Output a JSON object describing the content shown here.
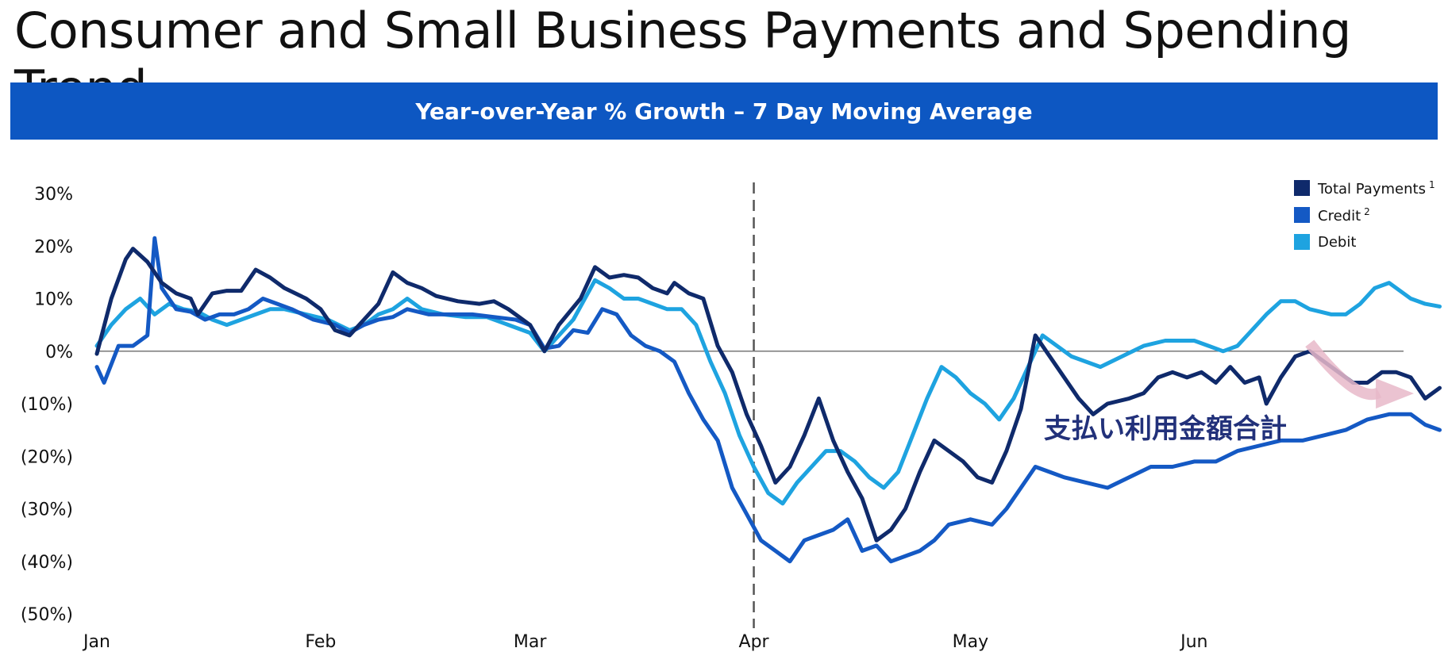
{
  "page": {
    "title": "Consumer and Small Business Payments and Spending Trend",
    "banner": "Year-over-Year % Growth – 7 Day Moving Average",
    "annotation": "支払い利用金額合計"
  },
  "colors": {
    "banner": "#0d57c2",
    "total": "#0f2a6b",
    "credit": "#1459c4",
    "debit": "#1ea3e0",
    "arrow": "#e8b9c9"
  },
  "chart_data": {
    "type": "line",
    "title": "Year-over-Year % Growth – 7 Day Moving Average",
    "xlabel": "",
    "ylabel": "",
    "x_ticks": [
      "Jan",
      "Feb",
      "Mar",
      "Apr",
      "May",
      "Jun"
    ],
    "y_ticks": [
      "30%",
      "20%",
      "10%",
      "0%",
      "(10%)",
      "(20%)",
      "(30%)",
      "(40%)",
      "(50%)"
    ],
    "ylim": [
      -50,
      30
    ],
    "x_start": "2020-01-01",
    "x_end": "2020-06-30",
    "reference_line_date": "2020-04-01",
    "zero_line": true,
    "legend_position": "top-right",
    "legend": [
      {
        "name": "Total Payments",
        "sup": "1"
      },
      {
        "name": "Credit",
        "sup": "2"
      },
      {
        "name": "Debit",
        "sup": ""
      }
    ],
    "series": [
      {
        "name": "Total Payments",
        "points": [
          [
            "2020-01-01",
            -0.5
          ],
          [
            "2020-01-03",
            10
          ],
          [
            "2020-01-05",
            17.5
          ],
          [
            "2020-01-06",
            19.5
          ],
          [
            "2020-01-08",
            17
          ],
          [
            "2020-01-10",
            13
          ],
          [
            "2020-01-12",
            11
          ],
          [
            "2020-01-14",
            10
          ],
          [
            "2020-01-15",
            7
          ],
          [
            "2020-01-17",
            11
          ],
          [
            "2020-01-19",
            11.5
          ],
          [
            "2020-01-21",
            11.5
          ],
          [
            "2020-01-23",
            15.5
          ],
          [
            "2020-01-25",
            14
          ],
          [
            "2020-01-27",
            12
          ],
          [
            "2020-01-30",
            10
          ],
          [
            "2020-02-01",
            8
          ],
          [
            "2020-02-03",
            4
          ],
          [
            "2020-02-05",
            3
          ],
          [
            "2020-02-07",
            6
          ],
          [
            "2020-02-09",
            9
          ],
          [
            "2020-02-11",
            15
          ],
          [
            "2020-02-13",
            13
          ],
          [
            "2020-02-15",
            12
          ],
          [
            "2020-02-17",
            10.5
          ],
          [
            "2020-02-20",
            9.5
          ],
          [
            "2020-02-23",
            9
          ],
          [
            "2020-02-25",
            9.5
          ],
          [
            "2020-02-27",
            8
          ],
          [
            "2020-03-01",
            5
          ],
          [
            "2020-03-03",
            0
          ],
          [
            "2020-03-05",
            5
          ],
          [
            "2020-03-08",
            10
          ],
          [
            "2020-03-10",
            16
          ],
          [
            "2020-03-12",
            14
          ],
          [
            "2020-03-14",
            14.5
          ],
          [
            "2020-03-16",
            14
          ],
          [
            "2020-03-18",
            12
          ],
          [
            "2020-03-20",
            11
          ],
          [
            "2020-03-21",
            13
          ],
          [
            "2020-03-23",
            11
          ],
          [
            "2020-03-25",
            10
          ],
          [
            "2020-03-27",
            1
          ],
          [
            "2020-03-29",
            -4
          ],
          [
            "2020-03-31",
            -12
          ],
          [
            "2020-04-02",
            -18
          ],
          [
            "2020-04-04",
            -25
          ],
          [
            "2020-04-06",
            -22
          ],
          [
            "2020-04-08",
            -16
          ],
          [
            "2020-04-10",
            -9
          ],
          [
            "2020-04-12",
            -17
          ],
          [
            "2020-04-14",
            -23
          ],
          [
            "2020-04-16",
            -28
          ],
          [
            "2020-04-18",
            -36
          ],
          [
            "2020-04-20",
            -34
          ],
          [
            "2020-04-22",
            -30
          ],
          [
            "2020-04-24",
            -23
          ],
          [
            "2020-04-26",
            -17
          ],
          [
            "2020-04-28",
            -19
          ],
          [
            "2020-04-30",
            -21
          ],
          [
            "2020-05-02",
            -24
          ],
          [
            "2020-05-04",
            -25
          ],
          [
            "2020-05-06",
            -19
          ],
          [
            "2020-05-08",
            -11
          ],
          [
            "2020-05-10",
            3
          ],
          [
            "2020-05-12",
            -1
          ],
          [
            "2020-05-14",
            -5
          ],
          [
            "2020-05-16",
            -9
          ],
          [
            "2020-05-18",
            -12
          ],
          [
            "2020-05-20",
            -10
          ],
          [
            "2020-05-23",
            -9
          ],
          [
            "2020-05-25",
            -8
          ],
          [
            "2020-05-27",
            -5
          ],
          [
            "2020-05-29",
            -4
          ],
          [
            "2020-05-31",
            -5
          ],
          [
            "2020-06-02",
            -4
          ],
          [
            "2020-06-04",
            -6
          ],
          [
            "2020-06-06",
            -3
          ],
          [
            "2020-06-08",
            -6
          ],
          [
            "2020-06-10",
            -5
          ],
          [
            "2020-06-11",
            -10
          ],
          [
            "2020-06-13",
            -5
          ],
          [
            "2020-06-15",
            -1
          ],
          [
            "2020-06-17",
            0
          ],
          [
            "2020-06-19",
            -2
          ],
          [
            "2020-06-21",
            -4
          ],
          [
            "2020-06-23",
            -6
          ],
          [
            "2020-06-25",
            -6
          ],
          [
            "2020-06-27",
            -4
          ],
          [
            "2020-06-29",
            -4
          ],
          [
            "2020-07-01",
            -5
          ],
          [
            "2020-07-03",
            -9
          ],
          [
            "2020-07-05",
            -7
          ]
        ]
      },
      {
        "name": "Credit",
        "points": [
          [
            "2020-01-01",
            -3
          ],
          [
            "2020-01-02",
            -6
          ],
          [
            "2020-01-04",
            1
          ],
          [
            "2020-01-06",
            1
          ],
          [
            "2020-01-08",
            3
          ],
          [
            "2020-01-09",
            21.5
          ],
          [
            "2020-01-10",
            12
          ],
          [
            "2020-01-12",
            8
          ],
          [
            "2020-01-14",
            7.5
          ],
          [
            "2020-01-16",
            6
          ],
          [
            "2020-01-18",
            7
          ],
          [
            "2020-01-20",
            7
          ],
          [
            "2020-01-22",
            8
          ],
          [
            "2020-01-24",
            10
          ],
          [
            "2020-01-26",
            9
          ],
          [
            "2020-01-28",
            8
          ],
          [
            "2020-01-31",
            6
          ],
          [
            "2020-02-03",
            5
          ],
          [
            "2020-02-05",
            3.5
          ],
          [
            "2020-02-07",
            5
          ],
          [
            "2020-02-09",
            6
          ],
          [
            "2020-02-11",
            6.5
          ],
          [
            "2020-02-13",
            8
          ],
          [
            "2020-02-16",
            7
          ],
          [
            "2020-02-19",
            7
          ],
          [
            "2020-02-22",
            7
          ],
          [
            "2020-02-25",
            6.5
          ],
          [
            "2020-02-28",
            6
          ],
          [
            "2020-03-01",
            5
          ],
          [
            "2020-03-03",
            0.5
          ],
          [
            "2020-03-05",
            1
          ],
          [
            "2020-03-07",
            4
          ],
          [
            "2020-03-09",
            3.5
          ],
          [
            "2020-03-11",
            8
          ],
          [
            "2020-03-13",
            7
          ],
          [
            "2020-03-15",
            3
          ],
          [
            "2020-03-17",
            1
          ],
          [
            "2020-03-19",
            0
          ],
          [
            "2020-03-21",
            -2
          ],
          [
            "2020-03-23",
            -8
          ],
          [
            "2020-03-25",
            -13
          ],
          [
            "2020-03-27",
            -17
          ],
          [
            "2020-03-29",
            -26
          ],
          [
            "2020-03-31",
            -31
          ],
          [
            "2020-04-02",
            -36
          ],
          [
            "2020-04-04",
            -38
          ],
          [
            "2020-04-06",
            -40
          ],
          [
            "2020-04-08",
            -36
          ],
          [
            "2020-04-10",
            -35
          ],
          [
            "2020-04-12",
            -34
          ],
          [
            "2020-04-14",
            -32
          ],
          [
            "2020-04-16",
            -38
          ],
          [
            "2020-04-18",
            -37
          ],
          [
            "2020-04-20",
            -40
          ],
          [
            "2020-04-22",
            -39
          ],
          [
            "2020-04-24",
            -38
          ],
          [
            "2020-04-26",
            -36
          ],
          [
            "2020-04-28",
            -33
          ],
          [
            "2020-05-01",
            -32
          ],
          [
            "2020-05-04",
            -33
          ],
          [
            "2020-05-06",
            -30
          ],
          [
            "2020-05-08",
            -26
          ],
          [
            "2020-05-10",
            -22
          ],
          [
            "2020-05-12",
            -23
          ],
          [
            "2020-05-14",
            -24
          ],
          [
            "2020-05-17",
            -25
          ],
          [
            "2020-05-20",
            -26
          ],
          [
            "2020-05-23",
            -24
          ],
          [
            "2020-05-26",
            -22
          ],
          [
            "2020-05-29",
            -22
          ],
          [
            "2020-06-01",
            -21
          ],
          [
            "2020-06-04",
            -21
          ],
          [
            "2020-06-07",
            -19
          ],
          [
            "2020-06-10",
            -18
          ],
          [
            "2020-06-13",
            -17
          ],
          [
            "2020-06-16",
            -17
          ],
          [
            "2020-06-19",
            -16
          ],
          [
            "2020-06-22",
            -15
          ],
          [
            "2020-06-25",
            -13
          ],
          [
            "2020-06-28",
            -12
          ],
          [
            "2020-07-01",
            -12
          ],
          [
            "2020-07-03",
            -14
          ],
          [
            "2020-07-05",
            -15
          ]
        ]
      },
      {
        "name": "Debit",
        "points": [
          [
            "2020-01-01",
            1
          ],
          [
            "2020-01-03",
            5
          ],
          [
            "2020-01-05",
            8
          ],
          [
            "2020-01-07",
            10
          ],
          [
            "2020-01-09",
            7
          ],
          [
            "2020-01-11",
            9
          ],
          [
            "2020-01-13",
            8
          ],
          [
            "2020-01-15",
            7.5
          ],
          [
            "2020-01-17",
            6
          ],
          [
            "2020-01-19",
            5
          ],
          [
            "2020-01-21",
            6
          ],
          [
            "2020-01-23",
            7
          ],
          [
            "2020-01-25",
            8
          ],
          [
            "2020-01-27",
            8
          ],
          [
            "2020-01-30",
            7
          ],
          [
            "2020-02-02",
            6
          ],
          [
            "2020-02-05",
            4
          ],
          [
            "2020-02-07",
            5
          ],
          [
            "2020-02-09",
            7
          ],
          [
            "2020-02-11",
            8
          ],
          [
            "2020-02-13",
            10
          ],
          [
            "2020-02-15",
            8
          ],
          [
            "2020-02-18",
            7
          ],
          [
            "2020-02-21",
            6.5
          ],
          [
            "2020-02-24",
            6.5
          ],
          [
            "2020-02-27",
            5
          ],
          [
            "2020-03-01",
            3.5
          ],
          [
            "2020-03-03",
            0
          ],
          [
            "2020-03-05",
            3
          ],
          [
            "2020-03-07",
            6
          ],
          [
            "2020-03-10",
            13.5
          ],
          [
            "2020-03-12",
            12
          ],
          [
            "2020-03-14",
            10
          ],
          [
            "2020-03-16",
            10
          ],
          [
            "2020-03-18",
            9
          ],
          [
            "2020-03-20",
            8
          ],
          [
            "2020-03-22",
            8
          ],
          [
            "2020-03-24",
            5
          ],
          [
            "2020-03-26",
            -2
          ],
          [
            "2020-03-28",
            -8
          ],
          [
            "2020-03-30",
            -16
          ],
          [
            "2020-04-01",
            -22
          ],
          [
            "2020-04-03",
            -27
          ],
          [
            "2020-04-05",
            -29
          ],
          [
            "2020-04-07",
            -25
          ],
          [
            "2020-04-09",
            -22
          ],
          [
            "2020-04-11",
            -19
          ],
          [
            "2020-04-13",
            -19
          ],
          [
            "2020-04-15",
            -21
          ],
          [
            "2020-04-17",
            -24
          ],
          [
            "2020-04-19",
            -26
          ],
          [
            "2020-04-21",
            -23
          ],
          [
            "2020-04-23",
            -16
          ],
          [
            "2020-04-25",
            -9
          ],
          [
            "2020-04-27",
            -3
          ],
          [
            "2020-04-29",
            -5
          ],
          [
            "2020-05-01",
            -8
          ],
          [
            "2020-05-03",
            -10
          ],
          [
            "2020-05-05",
            -13
          ],
          [
            "2020-05-07",
            -9
          ],
          [
            "2020-05-09",
            -3
          ],
          [
            "2020-05-11",
            3
          ],
          [
            "2020-05-13",
            1
          ],
          [
            "2020-05-15",
            -1
          ],
          [
            "2020-05-17",
            -2
          ],
          [
            "2020-05-19",
            -3
          ],
          [
            "2020-05-22",
            -1
          ],
          [
            "2020-05-25",
            1
          ],
          [
            "2020-05-28",
            2
          ],
          [
            "2020-06-01",
            2
          ],
          [
            "2020-06-03",
            1
          ],
          [
            "2020-06-05",
            0
          ],
          [
            "2020-06-07",
            1
          ],
          [
            "2020-06-09",
            4
          ],
          [
            "2020-06-11",
            7
          ],
          [
            "2020-06-13",
            9.5
          ],
          [
            "2020-06-15",
            9.5
          ],
          [
            "2020-06-17",
            8
          ],
          [
            "2020-06-20",
            7
          ],
          [
            "2020-06-22",
            7
          ],
          [
            "2020-06-24",
            9
          ],
          [
            "2020-06-26",
            12
          ],
          [
            "2020-06-28",
            13
          ],
          [
            "2020-07-01",
            10
          ],
          [
            "2020-07-03",
            9
          ],
          [
            "2020-07-05",
            8.5
          ]
        ]
      }
    ]
  }
}
